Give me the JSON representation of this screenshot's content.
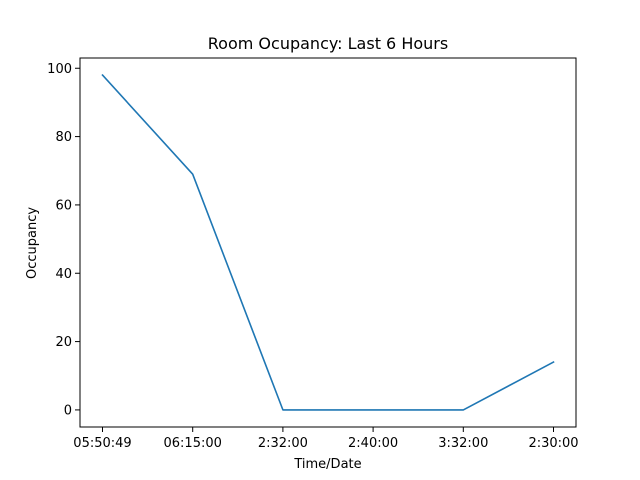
{
  "chart_data": {
    "type": "line",
    "title": "Room Ocupancy: Last 6 Hours",
    "xlabel": "Time/Date",
    "ylabel": "Occupancy",
    "categories": [
      "05:50:49",
      "06:15:00",
      "2:32:00",
      "2:40:00",
      "3:32:00",
      "2:30:00"
    ],
    "series": [
      {
        "values": [
          98,
          69,
          0,
          0,
          0,
          14
        ],
        "color": "#1f77b4"
      }
    ],
    "ylim": [
      -5,
      103
    ],
    "yticks": [
      0,
      20,
      40,
      60,
      80,
      100
    ],
    "grid": false,
    "legend": "none"
  }
}
